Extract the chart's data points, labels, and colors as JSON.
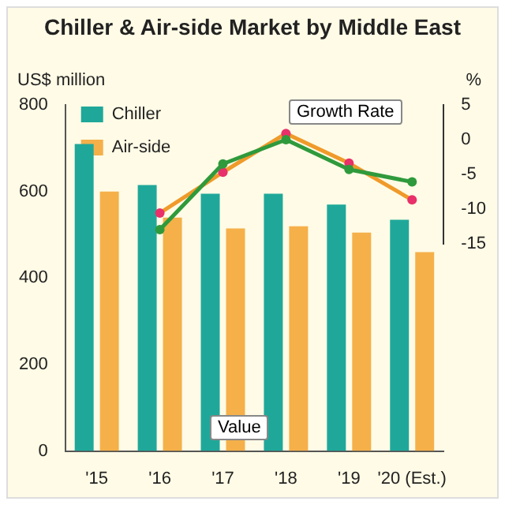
{
  "chart_data": {
    "type": "bar",
    "title": "Chiller & Air-side Market by Middle East",
    "ylabel": "US$ million",
    "y2label": "%",
    "categories": [
      "'15",
      "'16",
      "'17",
      "'18",
      "'19",
      "'20 (Est.)"
    ],
    "series": [
      {
        "name": "Chiller",
        "color": "#1fa89a",
        "values": [
          710,
          615,
          595,
          595,
          570,
          535
        ]
      },
      {
        "name": "Air-side",
        "color": "#f5b04a",
        "values": [
          600,
          540,
          515,
          520,
          505,
          460
        ]
      },
      {
        "type": "line",
        "axis": "y2",
        "color": "#2f9a3c",
        "values": [
          null,
          -13,
          -3.5,
          0,
          -4.3,
          -6.1
        ]
      },
      {
        "type": "line",
        "axis": "y2",
        "color": "#ef9a2a",
        "values": [
          null,
          -10.6,
          -4.7,
          0.9,
          -3.4,
          -8.7
        ]
      }
    ],
    "ylim": [
      0,
      800
    ],
    "yticks": [
      0,
      200,
      400,
      600,
      800
    ],
    "y2lim": [
      -15,
      5
    ],
    "y2ticks": [
      -15,
      -10,
      -5,
      0,
      5
    ],
    "annotations": [
      "Growth Rate",
      "Value"
    ],
    "legend": "top left",
    "grid": false,
    "marker": "circle"
  }
}
